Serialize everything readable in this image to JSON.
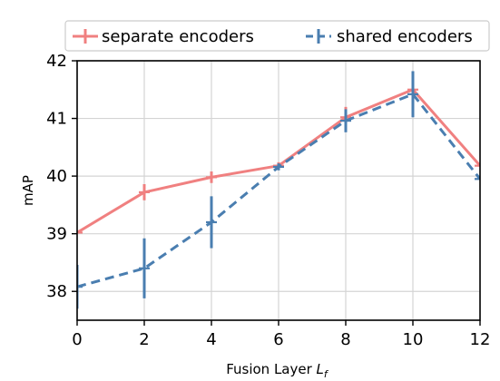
{
  "chart_data": {
    "type": "line",
    "x": [
      0,
      2,
      4,
      6,
      8,
      10,
      12
    ],
    "xlabel_text": "Fusion Layer ",
    "xlabel_var": "L",
    "xlabel_sub": "f",
    "ylabel": "mAP",
    "xlim": [
      0,
      12
    ],
    "ylim": [
      37.5,
      42
    ],
    "xticks": [
      "0",
      "2",
      "4",
      "6",
      "8",
      "10",
      "12"
    ],
    "yticks": [
      "38",
      "39",
      "40",
      "41",
      "42"
    ],
    "grid": true,
    "legend_position": "top",
    "series": [
      {
        "name": "separate encoders",
        "color": "#f08080",
        "style": "solid",
        "values": [
          39.02,
          39.72,
          39.98,
          40.18,
          41.02,
          41.5,
          40.18
        ],
        "errors": [
          0.0,
          0.14,
          0.1,
          0.06,
          0.18,
          0.1,
          0.0
        ]
      },
      {
        "name": "shared encoders",
        "color": "#4a7eb0",
        "style": "dashed",
        "values": [
          38.08,
          38.4,
          39.2,
          40.16,
          40.96,
          41.42,
          39.95
        ],
        "errors": [
          0.38,
          0.52,
          0.45,
          0.06,
          0.2,
          0.4,
          0.0
        ]
      }
    ]
  }
}
